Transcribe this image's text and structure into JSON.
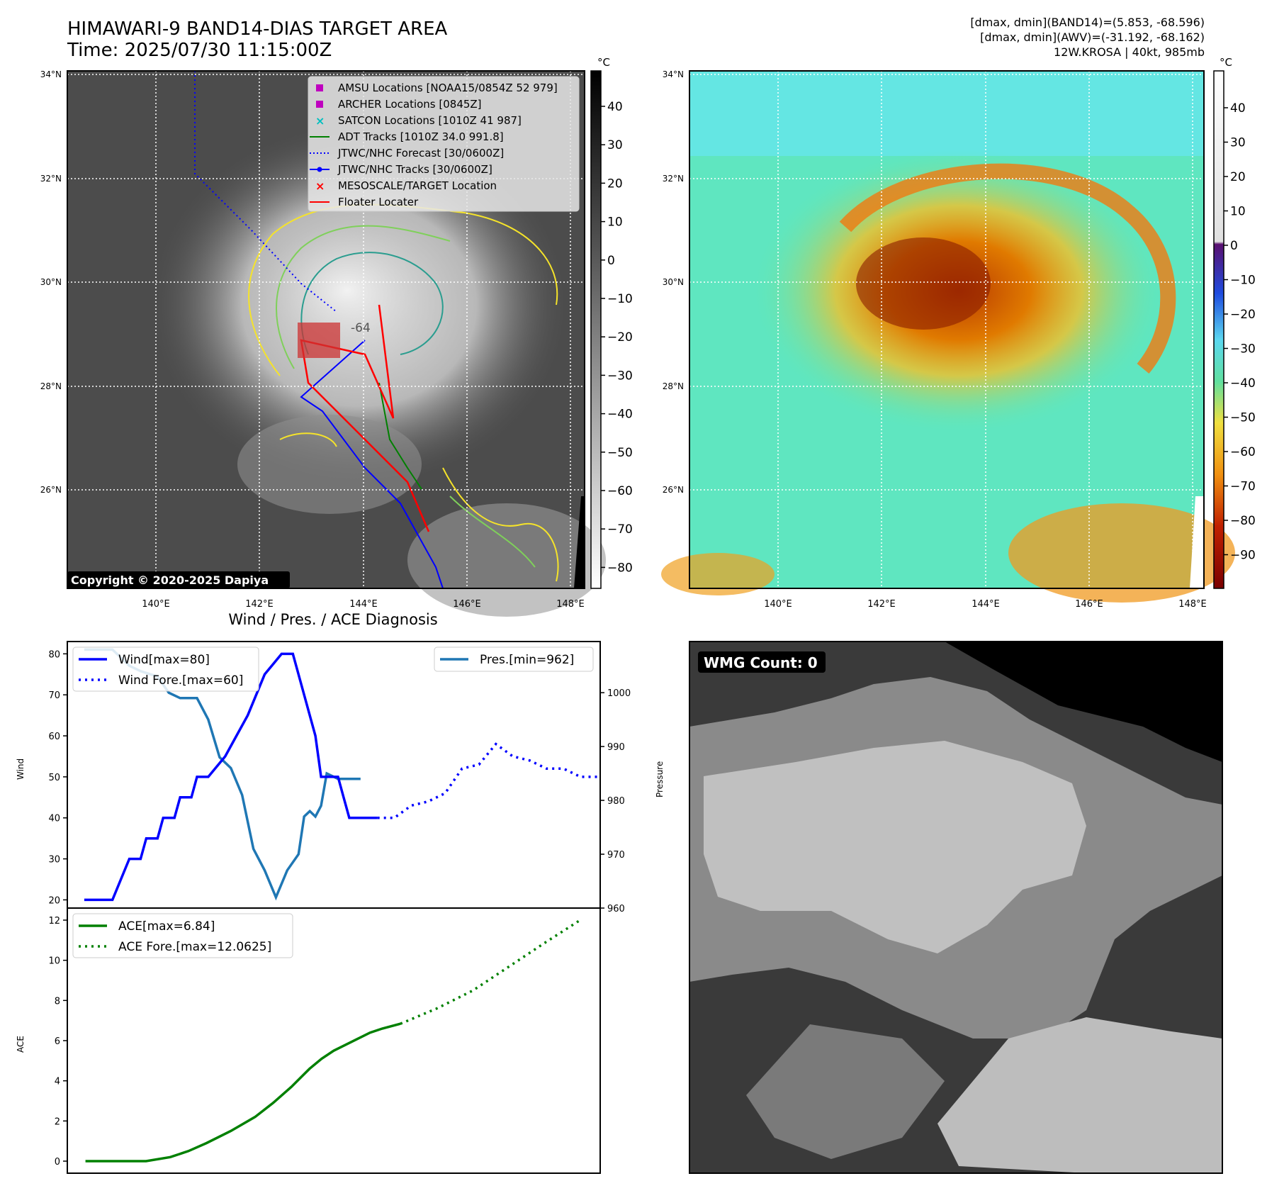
{
  "header": {
    "title": "HIMAWARI-9 BAND14-DIAS TARGET AREA",
    "time": "Time: 2025/07/30 11:15:00Z",
    "info_band14": "[dmax, dmin](BAND14)=(5.853, -68.596)",
    "info_awv": "[dmax, dmin](AWV)=(-31.192, -68.162)",
    "info_storm": "12W.KROSA | 40kt, 985mb"
  },
  "map": {
    "lat_labels": [
      "34°N",
      "32°N",
      "30°N",
      "28°N",
      "26°N"
    ],
    "lon_labels": [
      "140°E",
      "142°E",
      "144°E",
      "146°E",
      "148°E"
    ],
    "contour_label": "-64",
    "copyright": "Copyright © 2020-2025 Dapiya",
    "legend": [
      {
        "label": "AMSU Locations [NOAA15/0854Z 52 979]",
        "color": "#bf00bf",
        "marker": "square"
      },
      {
        "label": "ARCHER Locations [0845Z]",
        "color": "#bf00bf",
        "marker": "square"
      },
      {
        "label": "SATCON Locations [1010Z 41 987]",
        "color": "#00bfbf",
        "marker": "x"
      },
      {
        "label": "ADT Tracks [1010Z 34.0 991.8]",
        "color": "#008000",
        "marker": "line"
      },
      {
        "label": "JTWC/NHC Forecast [30/0600Z]",
        "color": "#0000ff",
        "marker": "dotted"
      },
      {
        "label": "JTWC/NHC Tracks [30/0600Z]",
        "color": "#0000ff",
        "marker": "line-dot"
      },
      {
        "label": "MESOSCALE/TARGET Location",
        "color": "#ff0000",
        "marker": "x"
      },
      {
        "label": "Floater Locater",
        "color": "#ff0000",
        "marker": "line"
      }
    ]
  },
  "colorbar_ir": {
    "unit": "°C",
    "ticks": [
      "40",
      "30",
      "20",
      "10",
      "0",
      "−10",
      "−20",
      "−30",
      "−40",
      "−50",
      "−60",
      "−70",
      "−80"
    ]
  },
  "colorbar_wv": {
    "unit": "°C",
    "ticks": [
      "40",
      "30",
      "20",
      "10",
      "0",
      "−10",
      "−20",
      "−30",
      "−40",
      "−50",
      "−60",
      "−70",
      "−80",
      "−90"
    ]
  },
  "wmg": {
    "label": "WMG Count: 0"
  },
  "chart_data": [
    {
      "type": "line",
      "title": "Wind / Pres. / ACE Diagnosis",
      "ylabel": "Wind",
      "ylabel_right": "Pressure",
      "ylim": [
        18,
        83
      ],
      "ylim_right": [
        960,
        1009.5
      ],
      "yticks": [
        20,
        30,
        40,
        50,
        60,
        70,
        80
      ],
      "yticks_right": [
        960,
        970,
        980,
        990,
        1000
      ],
      "x_range": [
        -3,
        52
      ],
      "series": [
        {
          "name": "Wind[max=80]",
          "axis": "left",
          "color": "#0000ff",
          "style": "solid",
          "x": [
            0,
            5,
            8,
            10,
            11,
            13,
            14,
            16,
            17,
            19,
            20,
            22,
            25,
            27,
            29,
            32,
            35,
            37,
            39,
            41,
            42,
            45,
            46,
            47,
            49,
            50,
            51,
            52
          ],
          "y": [
            20,
            20,
            30,
            30,
            35,
            35,
            40,
            40,
            45,
            45,
            50,
            50,
            55,
            60,
            65,
            75,
            80,
            80,
            70,
            60,
            50,
            50,
            45,
            40,
            40,
            40,
            40,
            40
          ]
        },
        {
          "name": "Wind Fore.[max=60]",
          "axis": "left",
          "color": "#0000ff",
          "style": "dotted",
          "x": [
            52,
            55,
            58,
            61,
            64,
            67,
            70,
            73,
            76,
            79,
            82,
            85,
            88,
            91
          ],
          "y": [
            40,
            40,
            43,
            44,
            46,
            52,
            53,
            58,
            55,
            54,
            52,
            52,
            50,
            50
          ]
        },
        {
          "name": "Pres.[min=962]",
          "axis": "right",
          "color": "#1f77b4",
          "style": "solid",
          "x": [
            0,
            5,
            8,
            10,
            13,
            15,
            17,
            20,
            22,
            24,
            26,
            28,
            30,
            32,
            34,
            36,
            38,
            39,
            40,
            41,
            42,
            43,
            45,
            46,
            47,
            48,
            49
          ],
          "y": [
            1008,
            1008,
            1005,
            1004,
            1003,
            1000,
            999,
            999,
            995,
            988,
            986,
            981,
            971,
            967,
            962,
            967,
            970,
            977,
            978,
            977,
            979,
            985,
            984,
            984,
            984,
            984,
            984
          ]
        }
      ]
    },
    {
      "type": "line",
      "ylabel": "ACE",
      "ylim": [
        -0.6,
        12.6
      ],
      "yticks": [
        0,
        2,
        4,
        6,
        8,
        10,
        12
      ],
      "x_range": [
        -3,
        85
      ],
      "series": [
        {
          "name": "ACE[max=6.84]",
          "color": "#008000",
          "style": "solid",
          "x": [
            0,
            10,
            14,
            17,
            20,
            24,
            28,
            31,
            34,
            37,
            39,
            41,
            43,
            45,
            47,
            49,
            52
          ],
          "y": [
            0,
            0,
            0.2,
            0.5,
            0.9,
            1.5,
            2.2,
            2.9,
            3.7,
            4.6,
            5.1,
            5.5,
            5.8,
            6.1,
            6.4,
            6.6,
            6.84
          ]
        },
        {
          "name": "ACE Fore.[max=12.0625]",
          "color": "#008000",
          "style": "dotted",
          "x": [
            52,
            58,
            64,
            70,
            76,
            82
          ],
          "y": [
            6.84,
            7.6,
            8.5,
            9.7,
            10.9,
            12.06
          ]
        }
      ]
    }
  ]
}
